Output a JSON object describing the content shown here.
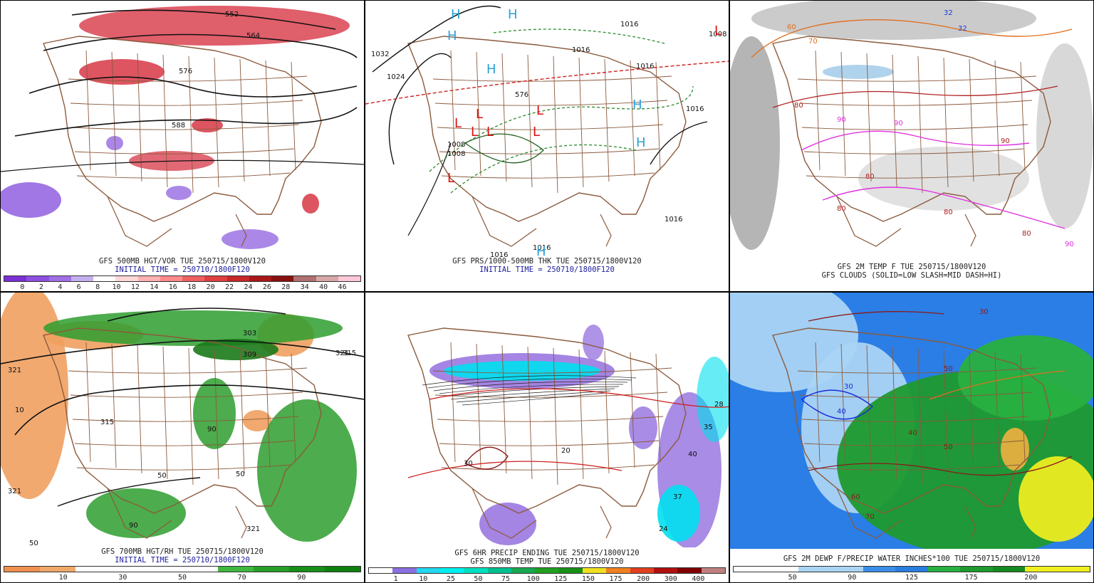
{
  "colors": {
    "state_lines": "#8b5a3c",
    "vort_red": "#d42a3a",
    "vort_purple": "#8855dd",
    "rh_green": "#2e9e2e",
    "rh_orange": "#f0a060",
    "precip_purple": "#9a78e0",
    "precip_cyan": "#00e0ee",
    "pw_blue": "#2a7ee6",
    "pw_yellow": "#ecec20",
    "cloud_gray": "#a8a8a8"
  },
  "panels": [
    {
      "id": "p1",
      "caption": "GFS 500MB HGT/VOR TUE 250715/1800V120",
      "caption2": "INITIAL TIME = 250710/1800F120",
      "labels": [
        "552",
        "564",
        "576",
        "588"
      ],
      "colorbar": {
        "colors": [
          "#7b2fd6",
          "#8f4fe0",
          "#a070e6",
          "#c4b0ee",
          "#ffffff",
          "#ffd8d8",
          "#ffb0b0",
          "#ff8a8a",
          "#f06060",
          "#e04040",
          "#c82828",
          "#a81818",
          "#8a1010",
          "#b07070",
          "#d8a8a8",
          "#ffc8d8"
        ],
        "labels": [
          "0",
          "2",
          "4",
          "6",
          "8",
          "10",
          "12",
          "14",
          "16",
          "18",
          "20",
          "22",
          "24",
          "26",
          "28",
          "34",
          "40",
          "46"
        ]
      }
    },
    {
      "id": "p2",
      "caption": "GFS PRS/1000-500MB THK TUE 250715/1800V120",
      "caption2": "INITIAL TIME = 250710/1800F120",
      "labels": [
        "1032",
        "1024",
        "1016",
        "1016",
        "1016",
        "1008",
        "1008",
        "1016",
        "1016",
        "1016",
        "1016",
        "576",
        "1008"
      ],
      "highs": [
        "H",
        "H",
        "H",
        "H",
        "H",
        "H",
        "H"
      ],
      "lows": [
        "L",
        "L",
        "L",
        "L",
        "L",
        "L",
        "L"
      ]
    },
    {
      "id": "p3",
      "caption": "GFS 2M TEMP F TUE 250715/1800V120",
      "caption2": "GFS CLOUDS (SOLID=LOW SLASH=MID DASH=HI)",
      "labels": [
        "32",
        "32",
        "60",
        "70",
        "80",
        "90",
        "90",
        "90",
        "80",
        "80",
        "80",
        "80",
        "90"
      ]
    },
    {
      "id": "p4",
      "caption": "GFS 700MB HGT/RH TUE 250715/1800V120",
      "caption2": "INITIAL TIME = 250710/1800F120",
      "labels": [
        "321",
        "315",
        "309",
        "303",
        "321",
        "315",
        "50",
        "90",
        "10",
        "50",
        "90",
        "321",
        "50",
        "321"
      ],
      "colorbar": {
        "colors": [
          "#f09050",
          "#f0a868",
          "#ffffff",
          "#ffffff",
          "#ffffff",
          "#ffffff",
          "#40b840",
          "#28a028",
          "#189018",
          "#0e800e"
        ],
        "labels": [
          "10",
          "30",
          "50",
          "70",
          "90"
        ]
      }
    },
    {
      "id": "p5",
      "caption": "GFS 6HR PRECIP ENDING TUE 250715/1800V120",
      "caption2": "GFS 850MB TEMP TUE 250715/1800V120",
      "labels": [
        "28",
        "35",
        "40",
        "37",
        "24",
        "20",
        "30"
      ],
      "colorbar": {
        "colors": [
          "#ffffff",
          "#8a6fe0",
          "#22d8f0",
          "#00f0f0",
          "#00e0c0",
          "#00c090",
          "#18a850",
          "#20a020",
          "#189018",
          "#f0e020",
          "#f08020",
          "#e04020",
          "#b01010",
          "#800000",
          "#c08080"
        ],
        "labels": [
          "1",
          "10",
          "25",
          "50",
          "75",
          "100",
          "125",
          "150",
          "175",
          "200",
          "300",
          "400"
        ]
      }
    },
    {
      "id": "p6",
      "caption": "GFS 2M DEWP F/PRECIP WATER INCHES*100 TUE 250715/1800V120",
      "labels": [
        "30",
        "40",
        "50",
        "60",
        "70",
        "30",
        "40",
        "50"
      ],
      "colorbar": {
        "colors": [
          "#ffffff",
          "#ffffff",
          "#aad4f4",
          "#aad4f4",
          "#3a8ee8",
          "#2a7ee0",
          "#28b040",
          "#1e9a2e",
          "#168a22",
          "#f0f020",
          "#f0f020"
        ],
        "labels": [
          "50",
          "90",
          "125",
          "175",
          "200"
        ]
      }
    }
  ]
}
